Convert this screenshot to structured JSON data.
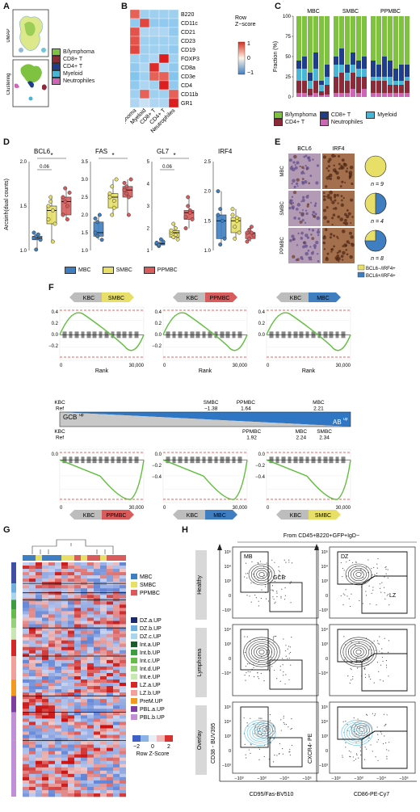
{
  "colors": {
    "b_lymphoma": "#7fc241",
    "cd8": "#8b2b3a",
    "cd4": "#1f3d8a",
    "myeloid": "#4ab6d6",
    "neutrophiles": "#cc66b5",
    "mbc": "#3f7fc1",
    "smbc": "#e7df67",
    "ppmbc": "#d95c5c",
    "green_curve": "#5fbf3c",
    "red_dash": "#e03030"
  },
  "panel_labels": [
    "A",
    "B",
    "C",
    "D",
    "E",
    "F",
    "G",
    "H"
  ],
  "panelA": {
    "umap_label": "UMAP",
    "clustering_label": "Clustering",
    "legend": [
      "B/lymphoma",
      "CD8+ T",
      "CD4+ T",
      "Myeloid",
      "Neutrophiles"
    ]
  },
  "panelB": {
    "rows": [
      "B220",
      "CD11c",
      "CD21",
      "CD23",
      "CD19",
      "FOXP3",
      "CD8a",
      "CD3e",
      "CD4",
      "CD11b",
      "GR1"
    ],
    "cols": [
      "B/lymphoma",
      "Myeloid",
      "CD8+ T",
      "CD4+ T",
      "Neutrophiles"
    ],
    "zscores": [
      [
        1.0,
        -0.5,
        -0.5,
        -0.5,
        -0.5
      ],
      [
        -0.6,
        1.2,
        -0.6,
        -0.6,
        -0.6
      ],
      [
        1.1,
        -0.4,
        -0.4,
        -0.4,
        -0.6
      ],
      [
        1.1,
        -0.5,
        -0.5,
        -0.5,
        -0.5
      ],
      [
        1.2,
        -0.5,
        -0.5,
        -0.5,
        -0.6
      ],
      [
        -0.5,
        -0.5,
        -0.4,
        1.5,
        -0.5
      ],
      [
        -0.6,
        -0.4,
        1.4,
        -0.4,
        -0.6
      ],
      [
        -0.7,
        -0.5,
        1.0,
        1.0,
        -0.7
      ],
      [
        -0.6,
        -0.4,
        -0.5,
        1.5,
        -0.6
      ],
      [
        -0.5,
        1.0,
        -0.5,
        -0.5,
        1.0
      ],
      [
        -0.4,
        -0.2,
        -0.4,
        -0.4,
        1.6
      ]
    ],
    "colorbar_title": "Row\nZ−score",
    "colorbar_ticks": [
      "1",
      "0",
      "−1"
    ]
  },
  "panelC": {
    "ylabel": "Fraction (%)",
    "groups": [
      "MBC",
      "SMBC",
      "PPMBC"
    ],
    "yticks": [
      "0",
      "25",
      "50",
      "75",
      "100"
    ],
    "legend": [
      "B/lymphoma",
      "CD8+ T",
      "Myeloid",
      "CD4+ T",
      "Neutrophiles"
    ]
  },
  "panelD": {
    "ylabel": "Arcsinh(dual counts)",
    "charts": [
      {
        "title": "BCL6",
        "ymin": 1.0,
        "ymax": 2.0,
        "yticks": [
          "1.0",
          "1.5",
          "2.0"
        ],
        "pval": "0.06",
        "star": "*",
        "mbc": [
          1.14,
          1.16,
          1.18,
          1.12,
          1.2,
          1.01
        ],
        "smbc": [
          1.5,
          1.6,
          1.45,
          1.3,
          1.35,
          1.55,
          1.1
        ],
        "ppmbc": [
          1.6,
          1.55,
          1.5,
          1.65,
          1.4,
          1.7,
          1.35
        ]
      },
      {
        "title": "FAS",
        "ymin": 1.0,
        "ymax": 3.5,
        "yticks": [
          "1.0",
          "1.5",
          "2.0",
          "2.5",
          "3.0",
          "3.5"
        ],
        "pval": "",
        "star": "*",
        "mbc": [
          1.5,
          1.8,
          2.0,
          1.3,
          1.9,
          1.4
        ],
        "smbc": [
          2.5,
          2.8,
          2.2,
          3.0,
          2.6,
          2.0,
          2.4
        ],
        "ppmbc": [
          2.7,
          2.8,
          2.5,
          3.0,
          2.9,
          2.6,
          2.0
        ]
      },
      {
        "title": "GL7",
        "ymin": 1.0,
        "ymax": 5.0,
        "yticks": [
          "1",
          "2",
          "3",
          "4",
          "5"
        ],
        "pval": "0.06",
        "star": "*",
        "mbc": [
          1.3,
          1.2,
          1.5,
          1.4,
          1.35,
          1.25
        ],
        "smbc": [
          1.8,
          1.6,
          2.0,
          1.5,
          1.9,
          2.2,
          1.7
        ],
        "ppmbc": [
          2.5,
          3.0,
          2.8,
          2.4,
          2.0,
          3.4,
          2.7
        ]
      },
      {
        "title": "IRF4",
        "ymin": 1.0,
        "ymax": 2.5,
        "yticks": [
          "1.0",
          "1.5",
          "2.0",
          "2.5"
        ],
        "pval": "",
        "star": "",
        "mbc": [
          2.0,
          1.7,
          1.5,
          1.2,
          1.6,
          1.1
        ],
        "smbc": [
          1.6,
          1.4,
          1.5,
          1.3,
          1.7,
          1.2,
          1.55
        ],
        "ppmbc": [
          1.3,
          1.2,
          1.4,
          1.25,
          1.15,
          1.35,
          1.3
        ]
      }
    ],
    "legend": [
      "MBC",
      "SMBC",
      "PPMBC"
    ]
  },
  "panelE": {
    "cols": [
      "BCL6",
      "IRF4"
    ],
    "rows": [
      "MBC",
      "SMBC",
      "PPMBC"
    ],
    "ns": [
      "n = 9",
      "n = 4",
      "n = 8"
    ],
    "pie_blue_fraction": [
      0.0,
      0.5,
      0.75
    ],
    "legend": [
      "BCL6−/IRF4+",
      "BCL6+/IRF4+"
    ]
  },
  "panelF": {
    "top": [
      {
        "left": "KBC",
        "right": "SMBC",
        "yticks": [
          "0.4",
          "0.2",
          "0.0",
          "−0.2"
        ],
        "xticks": [
          "0",
          "30,000"
        ],
        "xlabel": "Rank"
      },
      {
        "left": "KBC",
        "right": "PPMBC",
        "yticks": [
          "0.4",
          "0.2",
          "0.0",
          "−0.2"
        ],
        "xticks": [
          "0",
          "30,000"
        ],
        "xlabel": "Rank"
      },
      {
        "left": "KBC",
        "right": "MBC",
        "yticks": [
          "0.4",
          "0.2",
          "0.0"
        ],
        "xticks": [
          "0",
          "30,000"
        ],
        "xlabel": "Rank"
      }
    ],
    "scale_top": [
      {
        "label": "KBC\nRef",
        "pos": 0.0
      },
      {
        "label": "SMBC\n−1.38",
        "pos": 0.52
      },
      {
        "label": "PPMBC\n1.64",
        "pos": 0.64
      },
      {
        "label": "MBC\n2.21",
        "pos": 0.89
      }
    ],
    "scale_bottom": [
      {
        "label": "KBC\nRef",
        "pos": 0.0
      },
      {
        "label": "PPMBC\n1.92",
        "pos": 0.66
      },
      {
        "label": "MBC\n2.24",
        "pos": 0.83
      },
      {
        "label": "SMBC\n2.34",
        "pos": 0.91
      }
    ],
    "gcb_label": "GCB",
    "gcb_sup": "up",
    "ab_label": "AB",
    "ab_sup": "up",
    "bottom": [
      {
        "left": "KBC",
        "right": "PPMBC",
        "yticks": [
          "0.0"
        ],
        "xticks": [
          "0",
          "30,000"
        ],
        "xlabel": "Rank"
      },
      {
        "left": "KBC",
        "right": "MBC",
        "yticks": [
          "0.0",
          "−0.2",
          "−0.4"
        ],
        "xticks": [
          "0",
          "30,000"
        ],
        "xlabel": "Rank"
      },
      {
        "left": "KBC",
        "right": "SMBC",
        "yticks": [
          "0.0",
          "−0.2",
          "−0.4"
        ],
        "xticks": [
          "0",
          "30,000"
        ],
        "xlabel": "Rank"
      }
    ]
  },
  "panelG": {
    "top_legend": [
      {
        "label": "MBC",
        "color": "#3f7fc1"
      },
      {
        "label": "SMBC",
        "color": "#e7df67"
      },
      {
        "label": "PPMBC",
        "color": "#d95c5c"
      }
    ],
    "set_legend": [
      {
        "label": "DZ.a.UP",
        "color": "#1c2a6b"
      },
      {
        "label": "DZ.b.UP",
        "color": "#6fb0de"
      },
      {
        "label": "DZ.c.UP",
        "color": "#a9d5ef"
      },
      {
        "label": "Int.a.UP",
        "color": "#1f5a2a"
      },
      {
        "label": "Int.b.UP",
        "color": "#3d9c3f"
      },
      {
        "label": "Int.c.UP",
        "color": "#66bb4c"
      },
      {
        "label": "Int.d.UP",
        "color": "#97d27a"
      },
      {
        "label": "Int.e.UP",
        "color": "#c8e8b3"
      },
      {
        "label": "LZ.a.UP",
        "color": "#d62728"
      },
      {
        "label": "LZ.b.UP",
        "color": "#f2a09a"
      },
      {
        "label": "PreM.UP",
        "color": "#f39a1e"
      },
      {
        "label": "PBL.a.UP",
        "color": "#7d3ea0"
      },
      {
        "label": "PBL.b.UP",
        "color": "#c28fd6"
      }
    ],
    "colorbar_ticks": [
      "−2",
      "0",
      "2"
    ],
    "colorbar_title": "Row Z-Score"
  },
  "panelH": {
    "title": "From CD45+B220+GFP+IgD−",
    "rows": [
      "Healthy",
      "Lymphoma",
      "Overlay"
    ],
    "left_gates": [
      "MB",
      "GCB"
    ],
    "right_gates": [
      "DZ",
      "LZ"
    ],
    "left_ylabel": "CD38 - BUV395",
    "left_xlabel": "CD95/Fas-BV510",
    "right_ylabel": "CXCR4- PE",
    "right_xlabel": "CD86-PE-Cy7",
    "yticks": [
      "10⁵",
      "10⁴",
      "10³",
      "0",
      "−10³"
    ],
    "yticks_lymph": [
      "10⁴",
      "10³",
      "0",
      "−10⁴"
    ],
    "xticks": [
      "−10³",
      "−10³",
      "−10⁴",
      "−10⁵"
    ]
  }
}
